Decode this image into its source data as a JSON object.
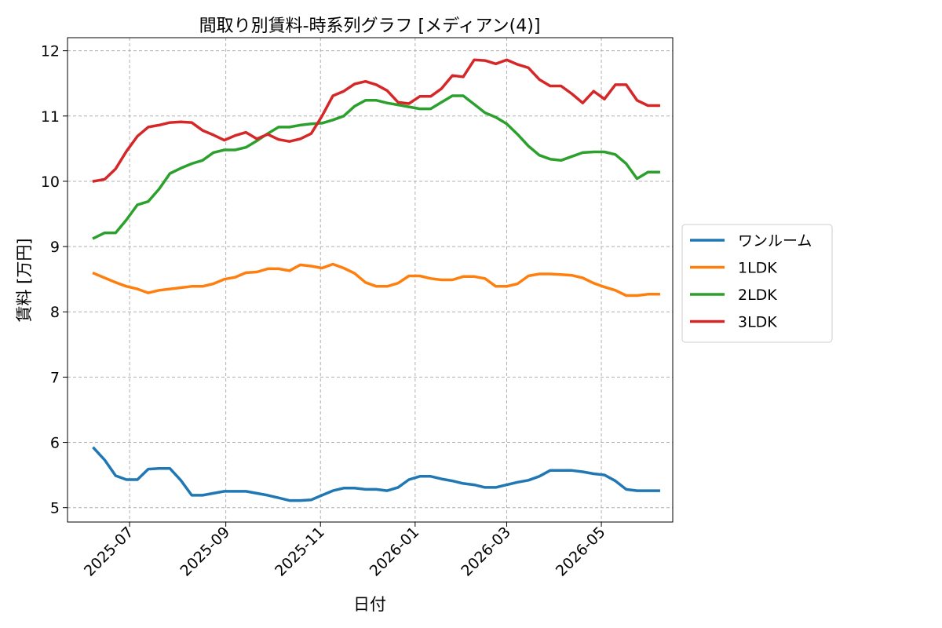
{
  "chart_data": {
    "type": "line",
    "title": "間取り別賃料-時系列グラフ [メディアン(4)]",
    "xlabel": "日付",
    "ylabel": "賃料 [万円]",
    "x_ticks": [
      "2025-07",
      "2025-09",
      "2025-11",
      "2026-01",
      "2026-03",
      "2026-05"
    ],
    "y_ticks": [
      "5",
      "6",
      "7",
      "8",
      "9",
      "10",
      "11",
      "12"
    ],
    "xlim": [
      "2025-05-22",
      "2026-06-16"
    ],
    "ylim": [
      4.78,
      12.2
    ],
    "grid": true,
    "legend_position": "center-right (outside)",
    "x": [
      "2025-06-08",
      "2025-06-15",
      "2025-06-22",
      "2025-06-29",
      "2025-07-06",
      "2025-07-13",
      "2025-07-20",
      "2025-07-27",
      "2025-08-03",
      "2025-08-10",
      "2025-08-17",
      "2025-08-24",
      "2025-08-31",
      "2025-09-07",
      "2025-09-14",
      "2025-09-21",
      "2025-09-28",
      "2025-10-05",
      "2025-10-12",
      "2025-10-19",
      "2025-10-26",
      "2025-11-02",
      "2025-11-09",
      "2025-11-16",
      "2025-11-23",
      "2025-11-30",
      "2025-12-07",
      "2025-12-14",
      "2025-12-21",
      "2025-12-28",
      "2026-01-04",
      "2026-01-11",
      "2026-01-18",
      "2026-01-25",
      "2026-02-01",
      "2026-02-08",
      "2026-02-15",
      "2026-02-22",
      "2026-03-01",
      "2026-03-08",
      "2026-03-15",
      "2026-03-22",
      "2026-03-29",
      "2026-04-05",
      "2026-04-12",
      "2026-04-19",
      "2026-04-26",
      "2026-05-03",
      "2026-05-10",
      "2026-05-17",
      "2026-05-24",
      "2026-05-31",
      "2026-06-07"
    ],
    "series": [
      {
        "name": "ワンルーム",
        "color": "#1f77b4",
        "values": [
          5.91,
          5.73,
          5.49,
          5.43,
          5.43,
          5.59,
          5.6,
          5.6,
          5.42,
          5.19,
          5.19,
          5.22,
          5.25,
          5.25,
          5.25,
          5.22,
          5.19,
          5.15,
          5.11,
          5.11,
          5.12,
          5.19,
          5.26,
          5.3,
          5.3,
          5.28,
          5.28,
          5.26,
          5.31,
          5.43,
          5.48,
          5.48,
          5.44,
          5.41,
          5.37,
          5.35,
          5.31,
          5.31,
          5.35,
          5.39,
          5.42,
          5.48,
          5.57,
          5.57,
          5.57,
          5.55,
          5.52,
          5.5,
          5.41,
          5.28,
          5.26,
          5.26,
          5.26
        ]
      },
      {
        "name": "1LDK",
        "color": "#ff7f0e",
        "values": [
          8.59,
          8.52,
          8.45,
          8.39,
          8.35,
          8.29,
          8.33,
          8.35,
          8.37,
          8.39,
          8.39,
          8.43,
          8.5,
          8.53,
          8.6,
          8.61,
          8.66,
          8.66,
          8.63,
          8.72,
          8.7,
          8.67,
          8.73,
          8.67,
          8.59,
          8.45,
          8.39,
          8.39,
          8.44,
          8.55,
          8.55,
          8.51,
          8.49,
          8.49,
          8.54,
          8.54,
          8.51,
          8.39,
          8.39,
          8.43,
          8.55,
          8.58,
          8.58,
          8.57,
          8.56,
          8.52,
          8.44,
          8.38,
          8.33,
          8.25,
          8.25,
          8.27,
          8.27
        ]
      },
      {
        "name": "2LDK",
        "color": "#2ca02c",
        "values": [
          9.13,
          9.21,
          9.21,
          9.41,
          9.64,
          9.69,
          9.88,
          10.12,
          10.2,
          10.27,
          10.32,
          10.44,
          10.48,
          10.48,
          10.52,
          10.62,
          10.73,
          10.83,
          10.83,
          10.86,
          10.88,
          10.89,
          10.94,
          11.0,
          11.15,
          11.24,
          11.24,
          11.2,
          11.17,
          11.14,
          11.11,
          11.11,
          11.21,
          11.31,
          11.31,
          11.18,
          11.05,
          10.98,
          10.88,
          10.72,
          10.54,
          10.4,
          10.34,
          10.32,
          10.38,
          10.44,
          10.45,
          10.45,
          10.41,
          10.27,
          10.04,
          10.14,
          10.14
        ]
      },
      {
        "name": "3LDK",
        "color": "#d62728",
        "values": [
          10.0,
          10.03,
          10.19,
          10.46,
          10.69,
          10.83,
          10.86,
          10.9,
          10.91,
          10.9,
          10.78,
          10.71,
          10.63,
          10.7,
          10.75,
          10.65,
          10.72,
          10.64,
          10.61,
          10.65,
          10.73,
          11.0,
          11.31,
          11.38,
          11.49,
          11.53,
          11.48,
          11.39,
          11.21,
          11.19,
          11.3,
          11.3,
          11.42,
          11.62,
          11.6,
          11.86,
          11.85,
          11.8,
          11.86,
          11.79,
          11.74,
          11.56,
          11.46,
          11.46,
          11.34,
          11.2,
          11.38,
          11.26,
          11.48,
          11.48,
          11.24,
          11.16,
          11.16
        ]
      }
    ]
  }
}
